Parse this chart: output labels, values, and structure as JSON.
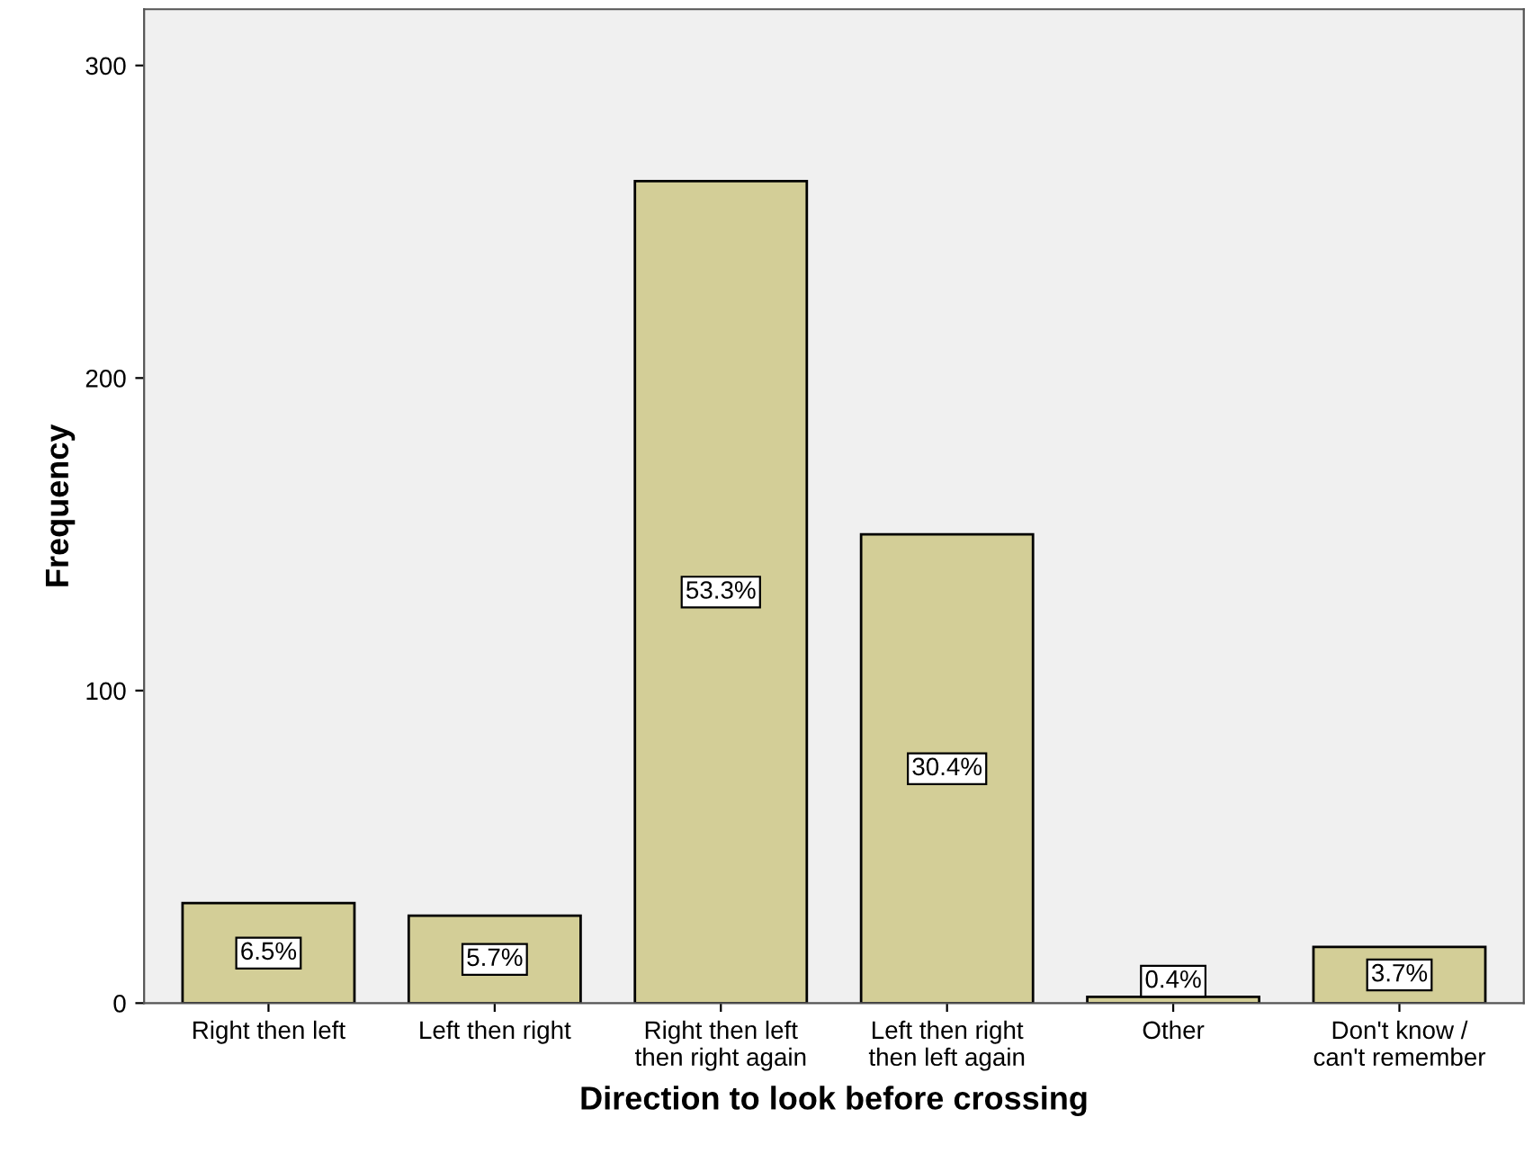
{
  "chart_data": {
    "type": "bar",
    "xlabel": "Direction to look before crossing",
    "ylabel": "Frequency",
    "categories": [
      "Right then left",
      "Left then right",
      "Right then left\nthen right again",
      "Left then right\nthen left again",
      "Other",
      "Don't know /\ncan't remember"
    ],
    "values": [
      32,
      28,
      263,
      150,
      2,
      18
    ],
    "annotations": [
      {
        "text": "6.5%",
        "x": "Right then left",
        "y": 16
      },
      {
        "text": "5.7%",
        "x": "Left then right",
        "y": 14
      },
      {
        "text": "53.3%",
        "x": "Right then left\nthen right again",
        "y": 131.5
      },
      {
        "text": "30.4%",
        "x": "Left then right\nthen left again",
        "y": 75
      },
      {
        "text": "0.4%",
        "x": "Other",
        "y": 7
      },
      {
        "text": "3.7%",
        "x": "Don't know /\ncan't remember",
        "y": 9
      }
    ],
    "color": "#d3ce97",
    "ylim": [
      0,
      318
    ],
    "yticks": [
      0,
      100,
      200,
      300
    ],
    "grid": false
  }
}
